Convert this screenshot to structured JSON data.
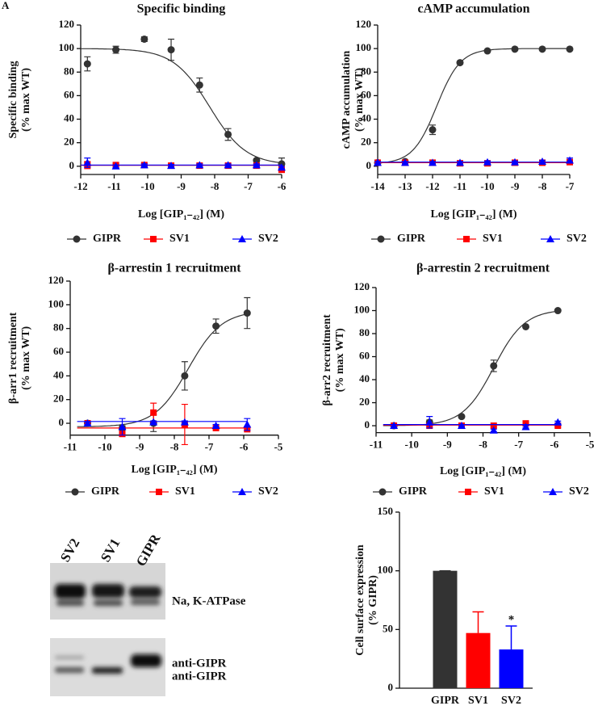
{
  "panel_label": "A",
  "chart_data": [
    {
      "type": "line",
      "title": "Specific binding",
      "ylabel": [
        "Specific binding",
        "(% max WT)"
      ],
      "xlabel": "Log [GIP₁₋₄₂] (M)",
      "x": [
        -11.8,
        -10.95,
        -10.1,
        -9.3,
        -8.45,
        -7.6,
        -6.75,
        -6
      ],
      "xlim": [
        -12,
        -6
      ],
      "xticks": [
        -12,
        -11,
        -10,
        -9,
        -8,
        -7,
        -6
      ],
      "ylim": [
        -7,
        120
      ],
      "yticks": [
        0,
        20,
        40,
        60,
        80,
        100,
        120
      ],
      "series": [
        {
          "name": "GIPR",
          "color": "#333333",
          "marker": "circle",
          "values": [
            87,
            99,
            108,
            99,
            69,
            27,
            5,
            2
          ],
          "errors": [
            6,
            3,
            2,
            9,
            6,
            5,
            1,
            5
          ],
          "fit": {
            "bottom": 1,
            "top": 100,
            "logEC50": -8.15,
            "hill": -0.8
          }
        },
        {
          "name": "SV1",
          "color": "#ff0000",
          "marker": "square",
          "values": [
            1,
            1,
            1,
            0.5,
            0.5,
            0.5,
            0.5,
            -3
          ],
          "errors": [
            3,
            1,
            1,
            1,
            1,
            1,
            1,
            2
          ],
          "fit": {
            "bottom": 0.8,
            "top": 0.8,
            "logEC50": -9,
            "hill": 1
          }
        },
        {
          "name": "SV2",
          "color": "#0000ff",
          "marker": "triangle",
          "values": [
            3,
            0,
            1,
            0.5,
            1,
            1,
            1,
            -1
          ],
          "errors": [
            4,
            1,
            1,
            1,
            1,
            1,
            1,
            1
          ],
          "fit": {
            "bottom": 1,
            "top": 1,
            "logEC50": -9,
            "hill": 1
          }
        }
      ]
    },
    {
      "type": "line",
      "title": "cAMP accumulation",
      "ylabel": [
        "cAMP accumulation",
        "(% max WT)"
      ],
      "xlabel": "Log [GIP₁₋₄₂] (M)",
      "x": [
        -14,
        -13,
        -12,
        -11,
        -10,
        -9,
        -8,
        -7
      ],
      "xlim": [
        -14,
        -7
      ],
      "xticks": [
        -14,
        -13,
        -12,
        -11,
        -10,
        -9,
        -8,
        -7
      ],
      "ylim": [
        -7,
        120
      ],
      "yticks": [
        0,
        20,
        40,
        60,
        80,
        100,
        120
      ],
      "series": [
        {
          "name": "GIPR",
          "color": "#333333",
          "marker": "circle",
          "values": [
            3,
            4,
            31,
            88,
            98,
            99.5,
            99.5,
            99.5
          ],
          "errors": [
            1,
            1,
            4,
            1,
            1,
            0.5,
            0.5,
            0.5
          ],
          "fit": {
            "bottom": 2,
            "top": 100,
            "logEC50": -11.85,
            "hill": 1
          }
        },
        {
          "name": "SV1",
          "color": "#ff0000",
          "marker": "square",
          "values": [
            3,
            3,
            3,
            2.5,
            2.5,
            3,
            3,
            3.5
          ],
          "errors": [
            1,
            1,
            1,
            1,
            1,
            1,
            1,
            1
          ],
          "fit": {
            "bottom": 3,
            "top": 3,
            "logEC50": -10,
            "hill": 1
          }
        },
        {
          "name": "SV2",
          "color": "#0000ff",
          "marker": "triangle",
          "values": [
            3,
            3,
            3,
            3,
            3.5,
            3.5,
            4,
            5
          ],
          "errors": [
            1,
            1,
            1,
            1,
            1,
            1,
            1,
            2
          ],
          "fit": {
            "bottom": 3.5,
            "top": 3.5,
            "logEC50": -10,
            "hill": 1
          }
        }
      ]
    },
    {
      "type": "line",
      "title": "β-arrestin 1 recruitment",
      "ylabel": [
        "β-arr1 recruitment",
        "(% max WT)"
      ],
      "xlabel": "Log [GIP₁₋₄₂] (M)",
      "x": [
        -10.5,
        -9.5,
        -8.6,
        -7.7,
        -6.8,
        -5.9
      ],
      "xlim": [
        -11,
        -5
      ],
      "xticks": [
        -11,
        -10,
        -9,
        -8,
        -7,
        -6,
        -5
      ],
      "ylim": [
        -10,
        120
      ],
      "yticks": [
        0,
        20,
        40,
        60,
        80,
        100,
        120
      ],
      "series": [
        {
          "name": "GIPR",
          "color": "#333333",
          "marker": "circle",
          "values": [
            0,
            -4,
            0,
            40,
            82,
            93
          ],
          "errors": [
            1,
            2,
            7,
            12,
            6,
            13
          ],
          "fit": {
            "bottom": -3,
            "top": 95,
            "logEC50": -7.6,
            "hill": 0.9
          }
        },
        {
          "name": "SV1",
          "color": "#ff0000",
          "marker": "square",
          "values": [
            0,
            -9,
            9,
            -1,
            -4,
            -5
          ],
          "errors": [
            1,
            1,
            8,
            17,
            1,
            1
          ],
          "fit": {
            "bottom": -4,
            "top": -4,
            "logEC50": -8,
            "hill": 1
          }
        },
        {
          "name": "SV2",
          "color": "#0000ff",
          "marker": "triangle",
          "values": [
            0,
            -3,
            1,
            1,
            -2,
            -1
          ],
          "errors": [
            1,
            7,
            1,
            1,
            1,
            5
          ],
          "fit": {
            "bottom": 1.5,
            "top": 1.5,
            "logEC50": -8,
            "hill": 1
          }
        }
      ]
    },
    {
      "type": "line",
      "title": "β-arrestin 2 recruitment",
      "ylabel": [
        "β-arr2 recruitment",
        "(% max WT)"
      ],
      "xlabel": "Log [GIP₁₋₄₂] (M)",
      "x": [
        -10.5,
        -9.5,
        -8.6,
        -7.7,
        -6.8,
        -5.9
      ],
      "xlim": [
        -11,
        -5
      ],
      "xticks": [
        -11,
        -10,
        -9,
        -8,
        -7,
        -6,
        -5
      ],
      "ylim": [
        -6,
        120
      ],
      "yticks": [
        0,
        20,
        40,
        60,
        80,
        100,
        120
      ],
      "series": [
        {
          "name": "GIPR",
          "color": "#333333",
          "marker": "circle",
          "values": [
            0,
            3,
            8,
            52,
            86,
            100
          ],
          "errors": [
            1,
            2,
            1,
            5,
            1,
            1
          ],
          "fit": {
            "bottom": 0,
            "top": 101,
            "logEC50": -7.7,
            "hill": 1
          }
        },
        {
          "name": "SV1",
          "color": "#ff0000",
          "marker": "square",
          "values": [
            0,
            0,
            0,
            0,
            2,
            0
          ],
          "errors": [
            1,
            1,
            1,
            1,
            1,
            1
          ],
          "fit": {
            "bottom": 0.5,
            "top": 0.5,
            "logEC50": -8,
            "hill": 1
          }
        },
        {
          "name": "SV2",
          "color": "#0000ff",
          "marker": "triangle",
          "values": [
            0,
            3,
            0,
            -4,
            -1,
            3
          ],
          "errors": [
            1,
            5,
            1,
            1,
            1,
            1
          ],
          "fit": {
            "bottom": 1,
            "top": 1,
            "logEC50": -8,
            "hill": 1
          }
        }
      ]
    },
    {
      "type": "bar",
      "ylabel": [
        "Cell surface expression",
        "(% GIPR)"
      ],
      "categories": [
        "GIPR",
        "SV1",
        "SV2"
      ],
      "values": [
        100,
        47,
        33
      ],
      "errors": [
        0,
        18,
        20
      ],
      "colors": [
        "#333333",
        "#ff0000",
        "#0000ff"
      ],
      "ylim": [
        0,
        150
      ],
      "yticks": [
        0,
        50,
        100,
        150
      ],
      "annotations": [
        null,
        null,
        "*"
      ]
    }
  ],
  "blot": {
    "lane_labels": [
      "SV2",
      "SV1",
      "GIPR"
    ],
    "band_labels": [
      "Na, K-ATPase",
      "anti-GIPR",
      "anti-GIPR"
    ]
  }
}
